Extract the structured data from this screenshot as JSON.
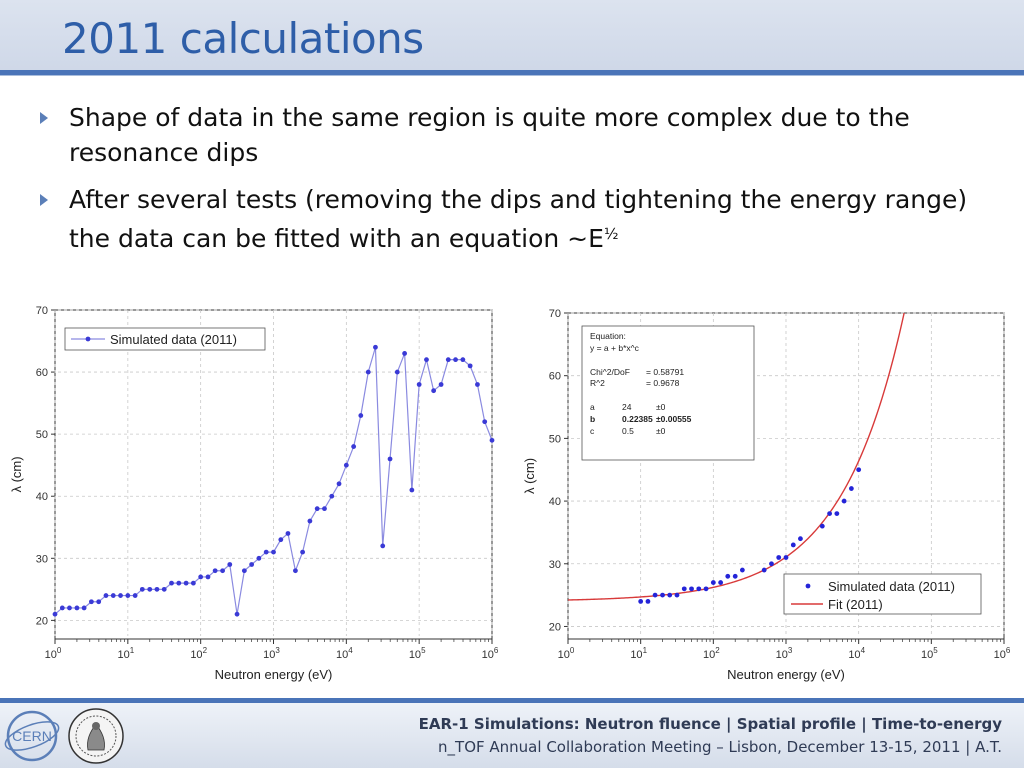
{
  "slide": {
    "title": "2011 calculations",
    "bullets": [
      "Shape of data in the same region is quite more complex due to the resonance dips",
      "After several tests (removing the dips and tightening the energy range) the data can be fitted with an equation ~E"
    ],
    "bullet2_sup": "½"
  },
  "footer": {
    "line1": "EAR-1 Simulations: Neutron fluence | Spatial profile | Time-to-energy",
    "line2": "n_TOF Annual Collaboration Meeting – Lisbon, December 13-15, 2011 | A.T.",
    "logo_cern": "CERN"
  },
  "chart_data": [
    {
      "type": "line",
      "xlabel": "Neutron energy (eV)",
      "ylabel": "λ (cm)",
      "xscale": "log",
      "xlim": [
        1,
        1000000
      ],
      "ylim": [
        17,
        70
      ],
      "yticks": [
        20,
        30,
        40,
        50,
        60,
        70
      ],
      "xtick_exponents": [
        "0",
        "1",
        "2",
        "3",
        "4",
        "5",
        "6"
      ],
      "xtick_base": "10",
      "legend": "top-left",
      "series": [
        {
          "name": "Simulated data (2011)",
          "color": "#3a3ad6",
          "line_color": "#8a8ae0",
          "x": [
            1,
            1.26,
            1.58,
            2,
            2.51,
            3.16,
            3.98,
            5.01,
            6.31,
            7.94,
            10,
            12.6,
            15.8,
            20,
            25.1,
            31.6,
            39.8,
            50.1,
            63.1,
            79.4,
            100,
            126,
            158,
            200,
            251,
            316,
            398,
            501,
            631,
            794,
            1000,
            1260,
            1580,
            2000,
            2510,
            3160,
            3980,
            5010,
            6310,
            7940,
            10000,
            12600,
            15800,
            20000,
            25100,
            31600,
            39800,
            50100,
            63100,
            79400,
            100000,
            126000,
            158000,
            200000,
            251000,
            316000,
            398000,
            501000,
            631000,
            794000,
            1000000
          ],
          "y": [
            21,
            22,
            22,
            22,
            22,
            23,
            23,
            24,
            24,
            24,
            24,
            24,
            25,
            25,
            25,
            25,
            26,
            26,
            26,
            26,
            27,
            27,
            28,
            28,
            29,
            21,
            28,
            29,
            30,
            31,
            31,
            33,
            34,
            28,
            31,
            36,
            38,
            38,
            40,
            42,
            45,
            48,
            53,
            60,
            64,
            32,
            46,
            60,
            63,
            41,
            58,
            62,
            57,
            58,
            62,
            62,
            62,
            61,
            58,
            52,
            49
          ]
        }
      ]
    },
    {
      "type": "scatter",
      "xlabel": "Neutron energy (eV)",
      "ylabel": "λ (cm)",
      "xscale": "log",
      "xlim": [
        1,
        1000000
      ],
      "ylim": [
        18,
        70
      ],
      "yticks": [
        20,
        30,
        40,
        50,
        60,
        70
      ],
      "xtick_exponents": [
        "0",
        "1",
        "2",
        "3",
        "4",
        "5",
        "6"
      ],
      "xtick_base": "10",
      "legend": "bottom-right",
      "fit_box": {
        "lines": [
          {
            "label": "Equation:"
          },
          {
            "label": "y = a + b*x^c"
          },
          {
            "label": ""
          },
          {
            "label": "Chi^2/DoF",
            "value": "= 0.58791"
          },
          {
            "label": "R^2",
            "value": "=  0.9678"
          },
          {
            "label": ""
          },
          {
            "label": "a",
            "value": "24",
            "err": "±0"
          },
          {
            "label": "b",
            "value": "0.22385",
            "err": "±0.00555",
            "bold": true
          },
          {
            "label": "c",
            "value": "0.5",
            "err": "±0"
          }
        ]
      },
      "series": [
        {
          "name": "Simulated data (2011)",
          "color": "#2424d8",
          "x": [
            10,
            12.6,
            15.8,
            20,
            25.1,
            31.6,
            39.8,
            50.1,
            63.1,
            79.4,
            100,
            126,
            158,
            200,
            251,
            501,
            631,
            794,
            1000,
            1260,
            1580,
            3160,
            3980,
            5010,
            6310,
            7940,
            10000
          ],
          "y": [
            24,
            24,
            25,
            25,
            25,
            25,
            26,
            26,
            26,
            26,
            27,
            27,
            28,
            28,
            29,
            29,
            30,
            31,
            31,
            33,
            34,
            36,
            38,
            38,
            40,
            42,
            45
          ]
        },
        {
          "name": "Fit (2011)",
          "color": "#d83a3a",
          "fit": {
            "a": 24,
            "b": 0.22385,
            "c": 0.5
          }
        }
      ]
    }
  ]
}
